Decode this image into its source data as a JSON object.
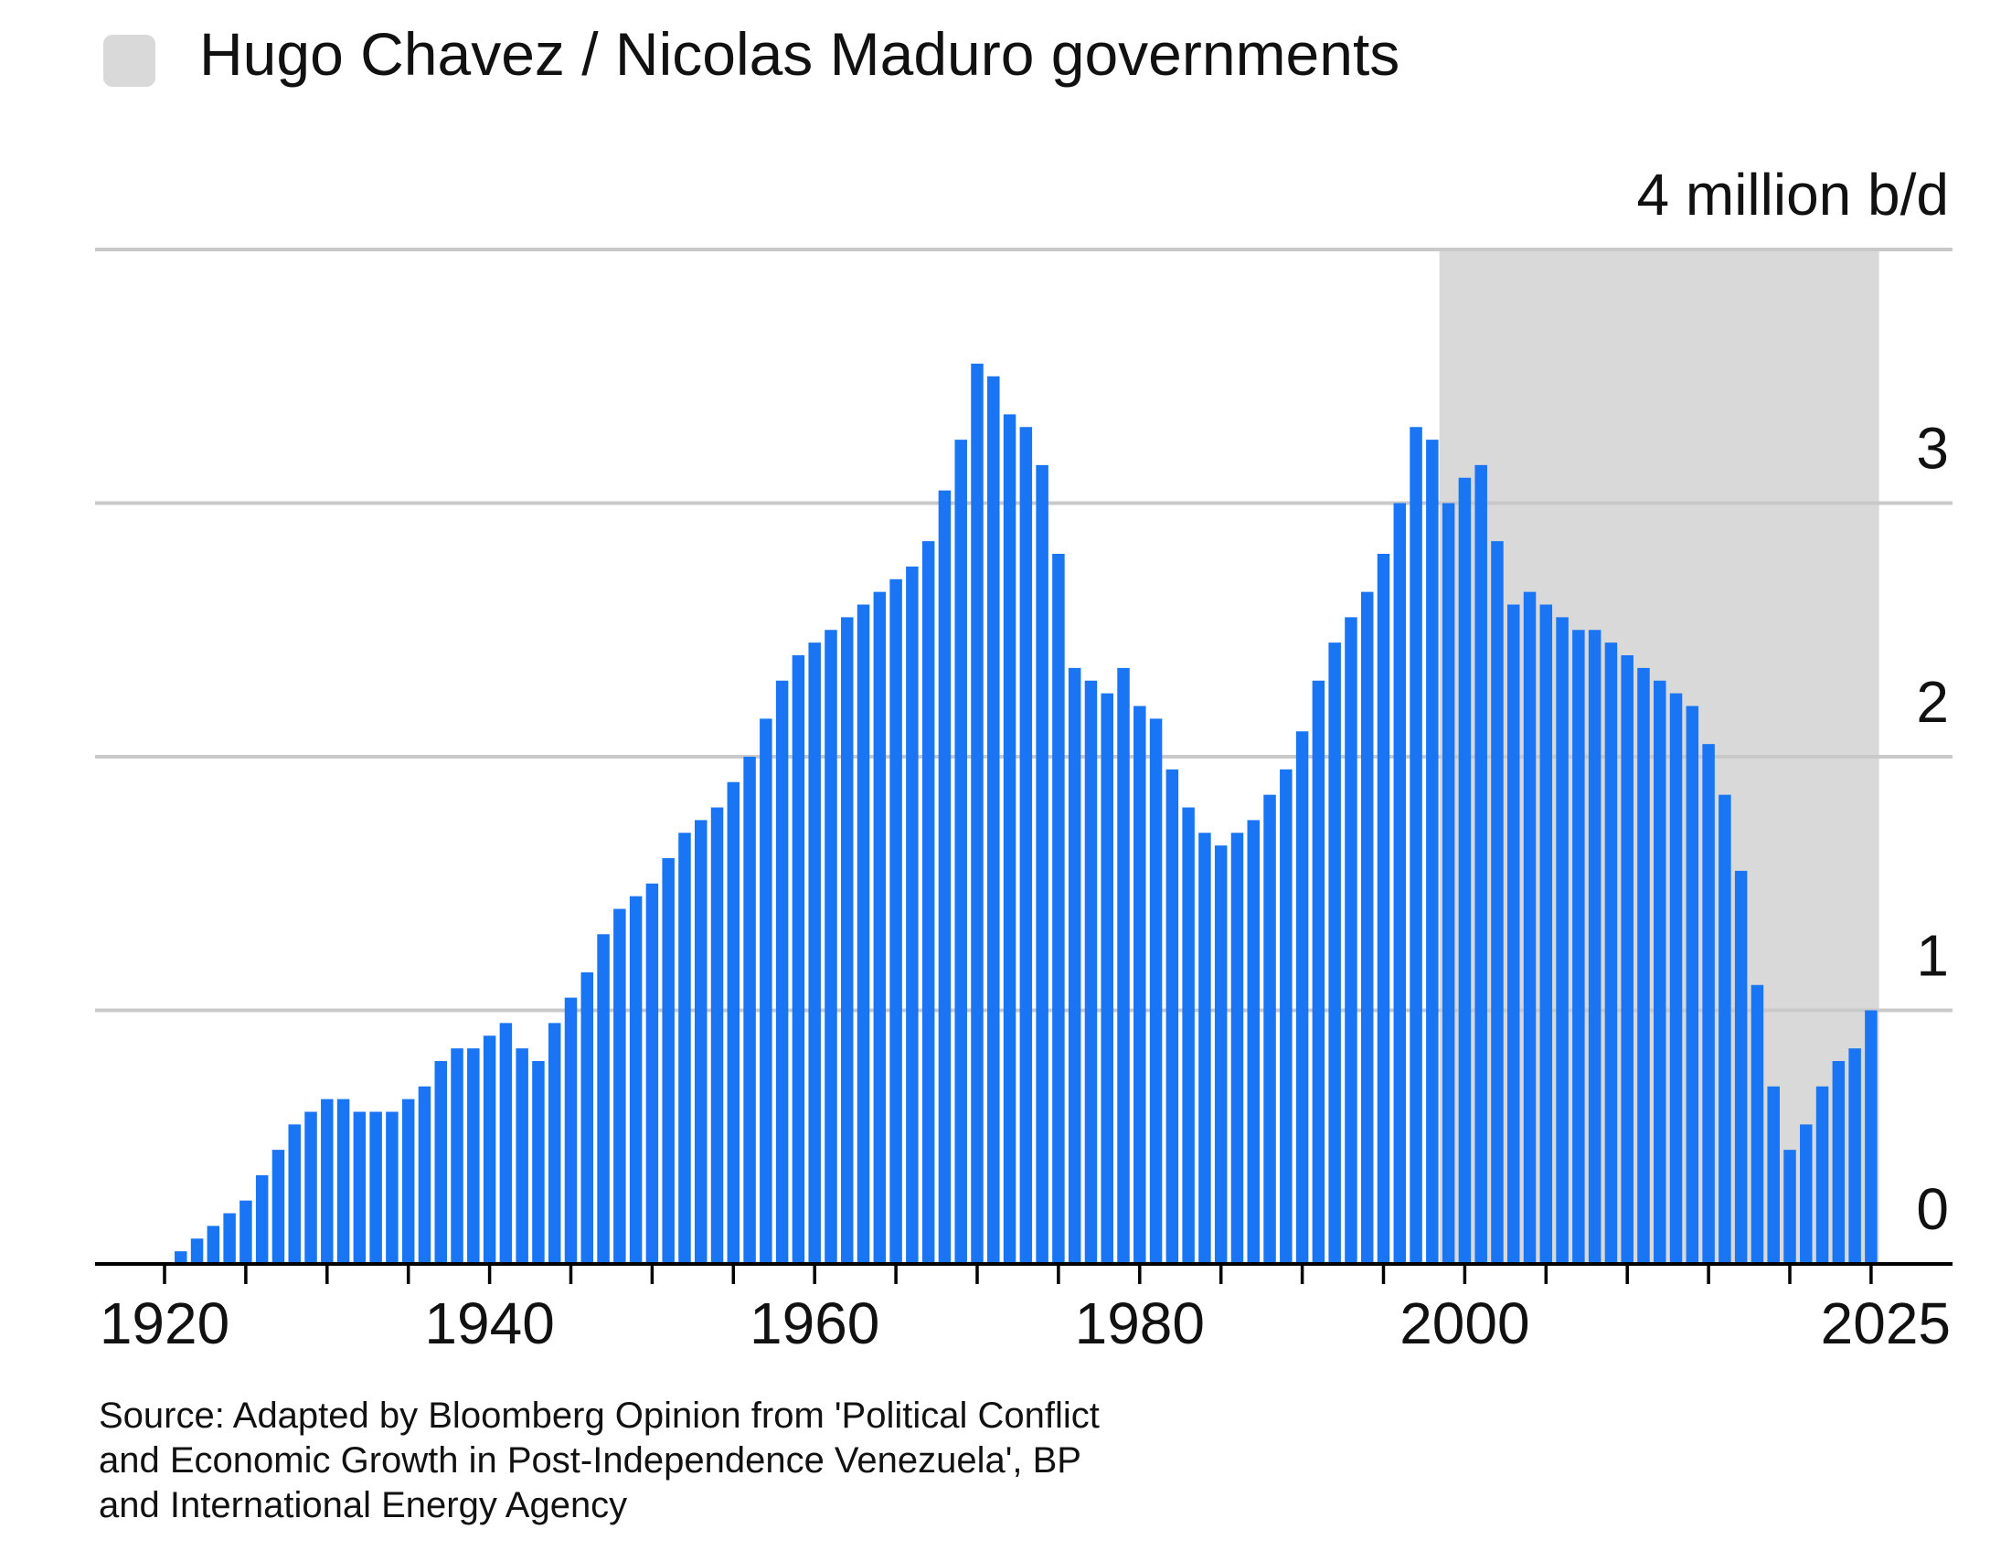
{
  "legend": {
    "label": "Hugo Chavez / Nicolas Maduro governments",
    "swatch_color": "#d9d9d9"
  },
  "source": {
    "lines": [
      "Source: Adapted by Bloomberg Opinion from 'Political Conflict",
      "and Economic Growth in Post-Independence Venezuela', BP",
      "and International Energy Agency"
    ]
  },
  "chart_data": {
    "type": "bar",
    "title": "",
    "xlabel": "",
    "ylabel": "",
    "unit_label": "4 million b/d",
    "bar_color": "#1a75f5",
    "ylim": [
      0,
      4
    ],
    "yticks": [
      {
        "value": 0,
        "label": "0"
      },
      {
        "value": 1,
        "label": "1"
      },
      {
        "value": 2,
        "label": "2"
      },
      {
        "value": 3,
        "label": "3"
      }
    ],
    "xlim": [
      1919,
      2026
    ],
    "xticks": [
      {
        "value": 1920,
        "label": "1920"
      },
      {
        "value": 1940,
        "label": "1940"
      },
      {
        "value": 1960,
        "label": "1960"
      },
      {
        "value": 1980,
        "label": "1980"
      },
      {
        "value": 2000,
        "label": "2000"
      },
      {
        "value": 2025,
        "label": "2025"
      }
    ],
    "minor_xticks": [
      1925,
      1930,
      1935,
      1945,
      1950,
      1955,
      1965,
      1970,
      1975,
      1985,
      1990,
      1995,
      2005,
      2010,
      2015,
      2020
    ],
    "highlight_period": {
      "start": 1999,
      "end": 2025,
      "color": "#d9d9d9"
    },
    "categories": [
      1921,
      1922,
      1923,
      1924,
      1925,
      1926,
      1927,
      1928,
      1929,
      1930,
      1931,
      1932,
      1933,
      1934,
      1935,
      1936,
      1937,
      1938,
      1939,
      1940,
      1941,
      1942,
      1943,
      1944,
      1945,
      1946,
      1947,
      1948,
      1949,
      1950,
      1951,
      1952,
      1953,
      1954,
      1955,
      1956,
      1957,
      1958,
      1959,
      1960,
      1961,
      1962,
      1963,
      1964,
      1965,
      1966,
      1967,
      1968,
      1969,
      1970,
      1971,
      1972,
      1973,
      1974,
      1975,
      1976,
      1977,
      1978,
      1979,
      1980,
      1981,
      1982,
      1983,
      1984,
      1985,
      1986,
      1987,
      1988,
      1989,
      1990,
      1991,
      1992,
      1993,
      1994,
      1995,
      1996,
      1997,
      1998,
      1999,
      2000,
      2001,
      2002,
      2003,
      2004,
      2005,
      2006,
      2007,
      2008,
      2009,
      2010,
      2011,
      2012,
      2013,
      2014,
      2015,
      2016,
      2017,
      2018,
      2019,
      2020,
      2021,
      2022,
      2023,
      2024,
      2025
    ],
    "values": [
      0.05,
      0.1,
      0.15,
      0.2,
      0.25,
      0.35,
      0.45,
      0.55,
      0.6,
      0.65,
      0.65,
      0.6,
      0.6,
      0.6,
      0.65,
      0.7,
      0.8,
      0.85,
      0.85,
      0.9,
      0.95,
      0.85,
      0.8,
      0.95,
      1.05,
      1.15,
      1.3,
      1.4,
      1.45,
      1.5,
      1.6,
      1.7,
      1.75,
      1.8,
      1.9,
      2.0,
      2.15,
      2.3,
      2.4,
      2.45,
      2.5,
      2.55,
      2.6,
      2.65,
      2.7,
      2.75,
      2.85,
      3.05,
      3.25,
      3.55,
      3.5,
      3.35,
      3.3,
      3.15,
      2.8,
      2.35,
      2.3,
      2.25,
      2.35,
      2.2,
      2.15,
      1.95,
      1.8,
      1.7,
      1.65,
      1.7,
      1.75,
      1.85,
      1.95,
      2.1,
      2.3,
      2.45,
      2.55,
      2.65,
      2.8,
      3.0,
      3.3,
      3.25,
      3.0,
      3.1,
      3.15,
      2.85,
      2.6,
      2.65,
      2.6,
      2.55,
      2.5,
      2.5,
      2.45,
      2.4,
      2.35,
      2.3,
      2.25,
      2.2,
      2.05,
      1.85,
      1.55,
      1.1,
      0.7,
      0.45,
      0.55,
      0.7,
      0.8,
      0.85,
      1.0
    ]
  }
}
